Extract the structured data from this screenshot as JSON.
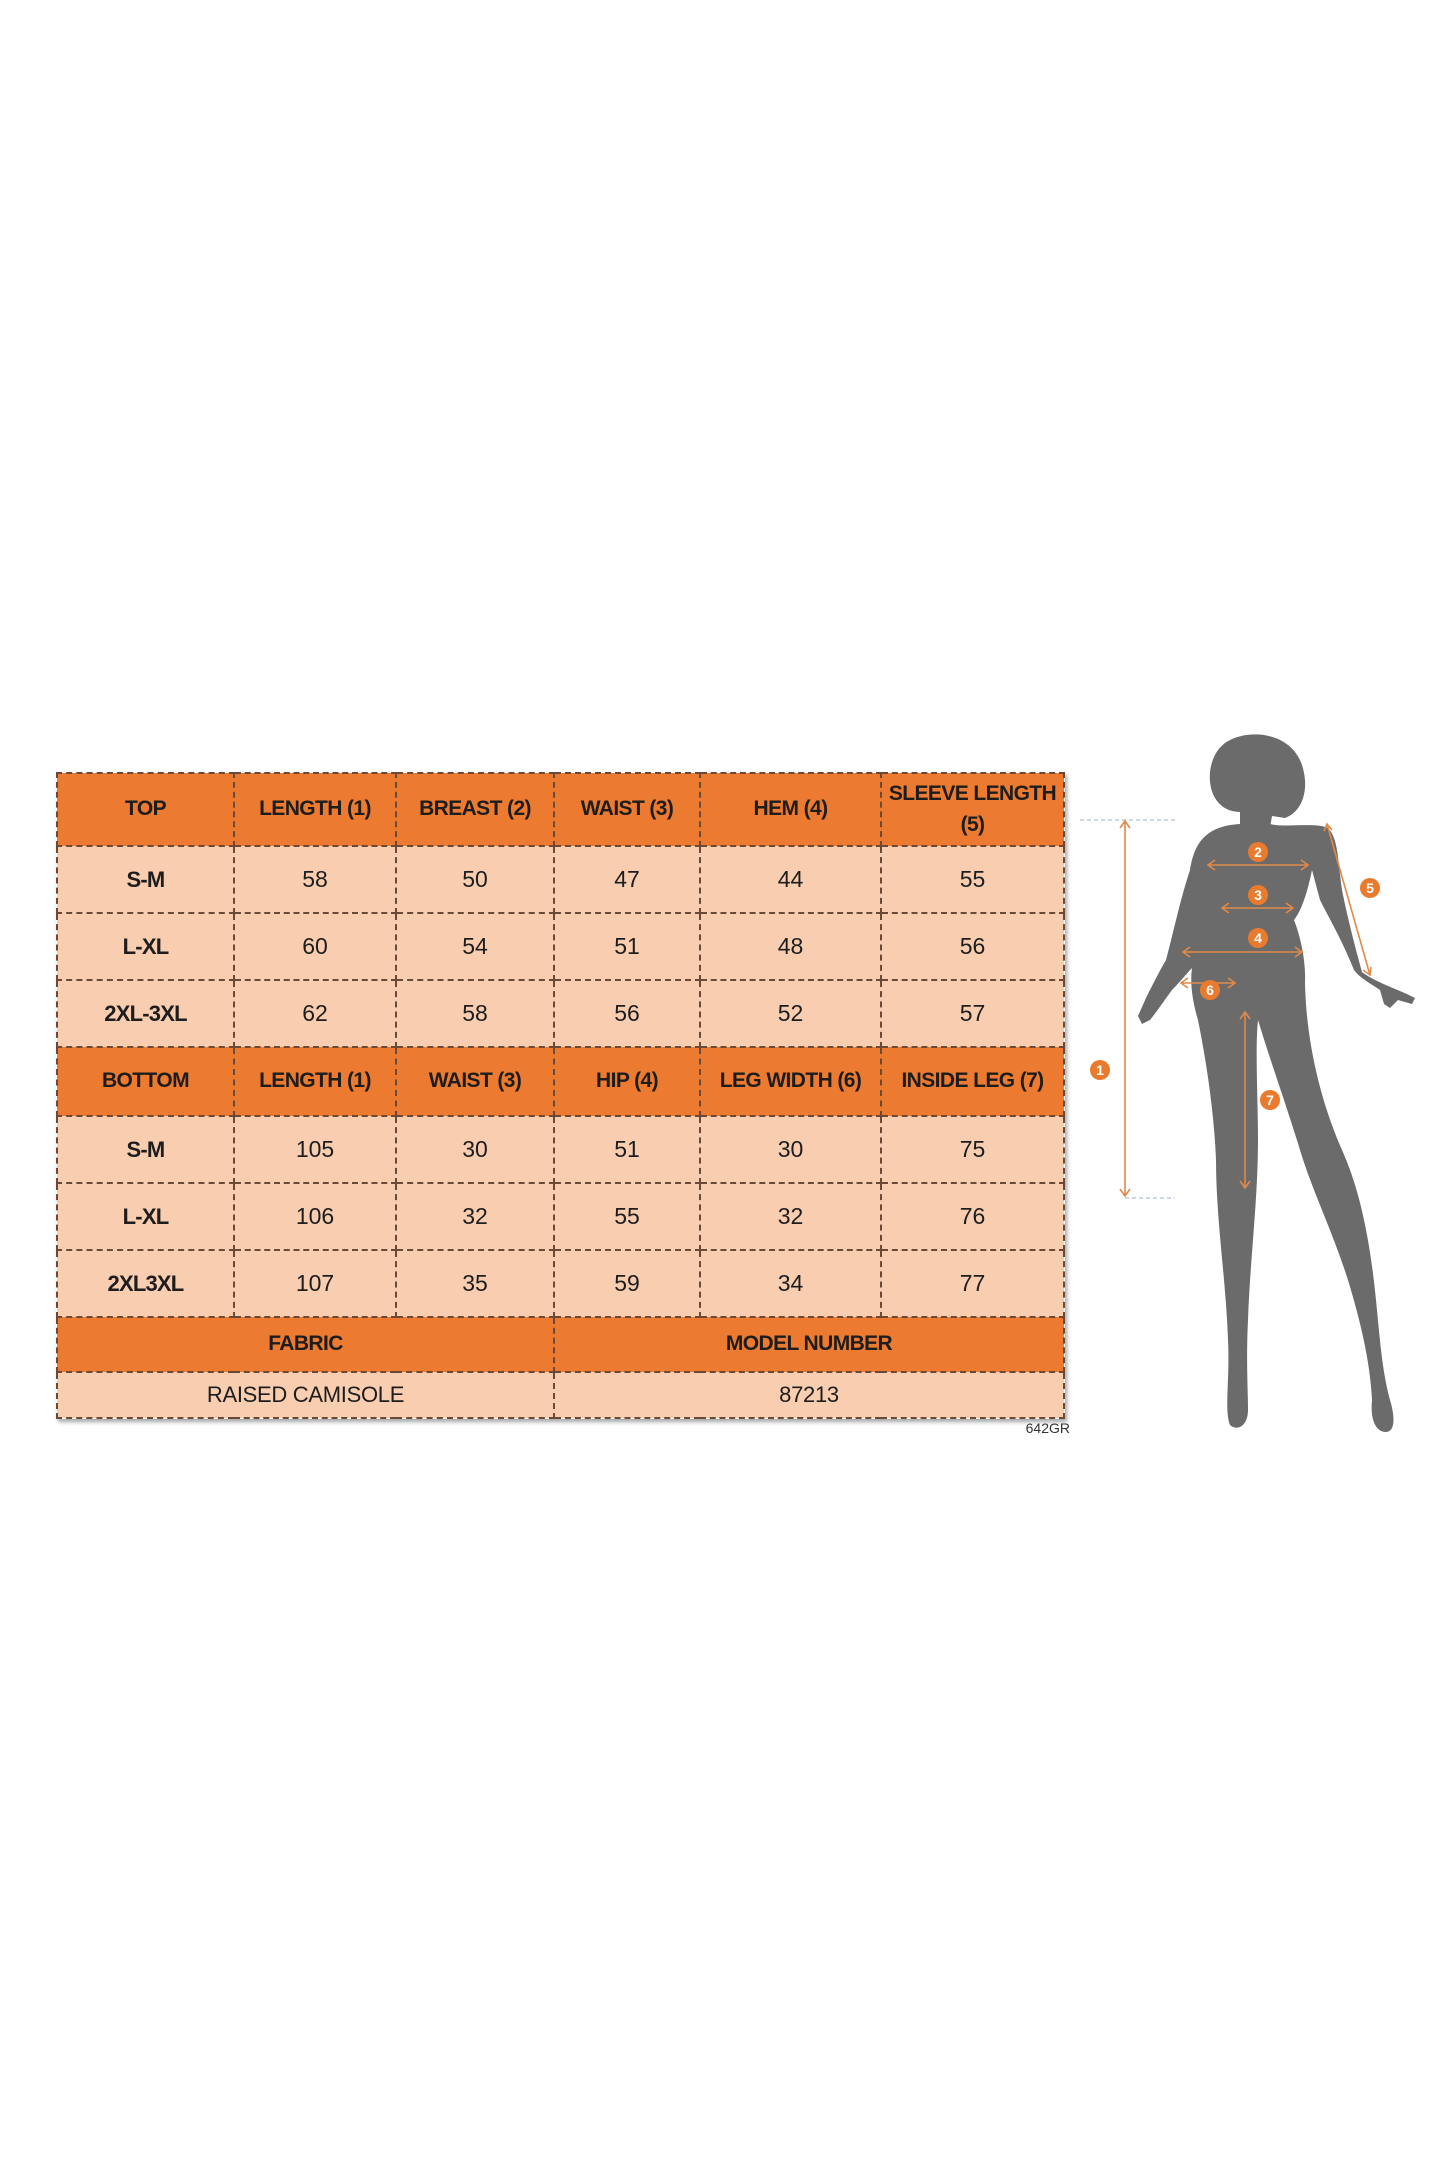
{
  "colors": {
    "header": "#ec7a30",
    "cell": "#f8cdb0",
    "silhouette": "#6b6b6b",
    "marker": "#e97b2e"
  },
  "top": {
    "headers": [
      "TOP",
      "LENGTH (1)",
      "BREAST (2)",
      "WAIST (3)",
      "HEM (4)",
      "SLEEVE LENGTH (5)"
    ],
    "rows": [
      [
        "S-M",
        "58",
        "50",
        "47",
        "44",
        "55"
      ],
      [
        "L-XL",
        "60",
        "54",
        "51",
        "48",
        "56"
      ],
      [
        "2XL-3XL",
        "62",
        "58",
        "56",
        "52",
        "57"
      ]
    ]
  },
  "bottom": {
    "headers": [
      "BOTTOM",
      "LENGTH (1)",
      "WAIST (3)",
      "HIP (4)",
      "LEG WIDTH (6)",
      "INSIDE LEG (7)"
    ],
    "rows": [
      [
        "S-M",
        "105",
        "30",
        "51",
        "30",
        "75"
      ],
      [
        "L-XL",
        "106",
        "32",
        "55",
        "32",
        "76"
      ],
      [
        "2XL3XL",
        "107",
        "35",
        "59",
        "34",
        "77"
      ]
    ]
  },
  "info": {
    "fabric_label": "FABRIC",
    "model_label": "MODEL NUMBER",
    "fabric_value": "RAISED CAMISOLE",
    "model_value": "87213"
  },
  "code": "642GR",
  "figure": {
    "markers": [
      "1",
      "2",
      "3",
      "4",
      "5",
      "6",
      "7"
    ]
  }
}
